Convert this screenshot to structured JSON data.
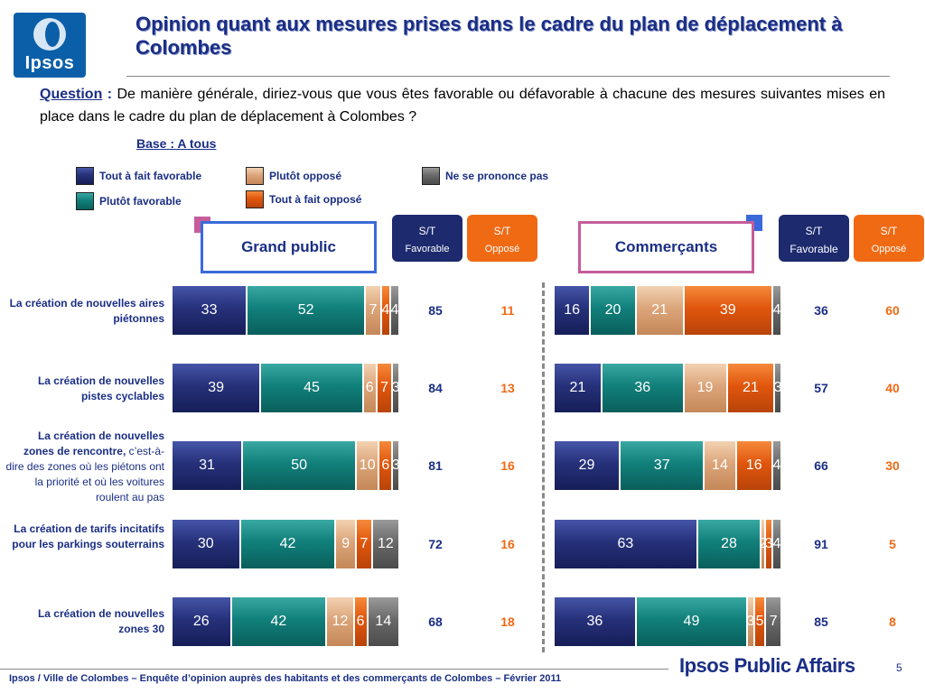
{
  "logo": {
    "text": "Ipsos"
  },
  "title": "Opinion quant aux mesures prises dans le cadre du plan de déplacement à Colombes",
  "question": {
    "label": "Question",
    "colon": " : ",
    "text": "De manière générale, diriez-vous que vous êtes favorable ou défavorable à chacune des mesures suivantes mises en place dans le cadre du plan de déplacement à Colombes ?"
  },
  "base": "Base : A tous",
  "colors": {
    "tout_favorable": "#26317a",
    "plutot_favorable": "#11807b",
    "plutot_oppose": "#dca57a",
    "tout_oppose": "#e1560c",
    "ne_se_prononce_pas": "#6a6a6a"
  },
  "legend": [
    {
      "label": "Tout à fait favorable",
      "color": "#26317a"
    },
    {
      "label": "Plutôt favorable",
      "color": "#11807b"
    },
    {
      "label": "Plutôt opposé",
      "color": "#dca57a"
    },
    {
      "label": "Tout à fait opposé",
      "color": "#e1560c"
    },
    {
      "label": "Ne se prononce pas",
      "color": "#6a6a6a"
    }
  ],
  "panels": [
    {
      "title": "Grand public",
      "st_fav": {
        "top": "S/T",
        "bottom": "Favorable"
      },
      "st_opp": {
        "top": "S/T",
        "bottom": "Opposé"
      }
    },
    {
      "title": "Commerçants",
      "st_fav": {
        "top": "S/T",
        "bottom": "Favorable"
      },
      "st_opp": {
        "top": "S/T",
        "bottom": "Opposé"
      }
    }
  ],
  "row_labels": [
    {
      "bold": "La création de nouvelles aires piétonnes",
      "normal": ""
    },
    {
      "bold": "La création de nouvelles pistes cyclables",
      "normal": ""
    },
    {
      "bold": "La création de nouvelles zones de rencontre,",
      "normal": " c’est-à-dire des zones où les piétons ont la priorité et où les voitures roulent au pas"
    },
    {
      "bold": "La création de tarifs incitatifs pour les parkings souterrains",
      "normal": ""
    },
    {
      "bold": "La création de nouvelles zones 30",
      "normal": ""
    }
  ],
  "chart_data": [
    {
      "type": "bar",
      "orientation": "horizontal",
      "stacked": true,
      "title": "Grand public",
      "categories": [
        "La création de nouvelles aires piétonnes",
        "La création de nouvelles pistes cyclables",
        "La création de nouvelles zones de rencontre",
        "La création de tarifs incitatifs pour les parkings souterrains",
        "La création de nouvelles zones 30"
      ],
      "series": [
        {
          "name": "Tout à fait favorable",
          "values": [
            33,
            39,
            31,
            30,
            26
          ]
        },
        {
          "name": "Plutôt favorable",
          "values": [
            52,
            45,
            50,
            42,
            42
          ]
        },
        {
          "name": "Plutôt opposé",
          "values": [
            7,
            6,
            10,
            9,
            12
          ]
        },
        {
          "name": "Tout à fait opposé",
          "values": [
            4,
            7,
            6,
            7,
            6
          ]
        },
        {
          "name": "Ne se prononce pas",
          "values": [
            4,
            3,
            3,
            12,
            14
          ]
        }
      ],
      "st_favorable": [
        85,
        84,
        81,
        72,
        68
      ],
      "st_oppose": [
        11,
        13,
        16,
        16,
        18
      ],
      "xlim": [
        0,
        100
      ]
    },
    {
      "type": "bar",
      "orientation": "horizontal",
      "stacked": true,
      "title": "Commerçants",
      "categories": [
        "La création de nouvelles aires piétonnes",
        "La création de nouvelles pistes cyclables",
        "La création de nouvelles zones de rencontre",
        "La création de tarifs incitatifs pour les parkings souterrains",
        "La création de nouvelles zones 30"
      ],
      "series": [
        {
          "name": "Tout à fait favorable",
          "values": [
            16,
            21,
            29,
            63,
            36
          ]
        },
        {
          "name": "Plutôt favorable",
          "values": [
            20,
            36,
            37,
            28,
            49
          ]
        },
        {
          "name": "Plutôt opposé",
          "values": [
            21,
            19,
            14,
            2,
            3
          ]
        },
        {
          "name": "Tout à fait opposé",
          "values": [
            39,
            21,
            16,
            3,
            5
          ]
        },
        {
          "name": "Ne se prononce pas",
          "values": [
            4,
            3,
            4,
            4,
            7
          ]
        }
      ],
      "st_favorable": [
        36,
        57,
        66,
        91,
        85
      ],
      "st_oppose": [
        60,
        40,
        30,
        5,
        8
      ],
      "xlim": [
        0,
        100
      ]
    }
  ],
  "footer": "Ipsos / Ville de Colombes – Enquête d’opinion auprès des habitants et des commerçants de Colombes – Février 2011",
  "brand": "Ipsos Public Affairs",
  "page_number": "5"
}
